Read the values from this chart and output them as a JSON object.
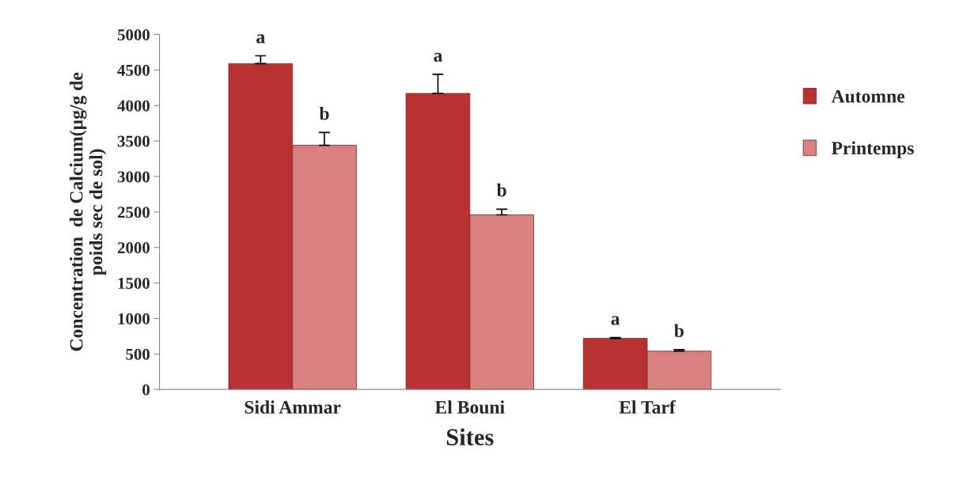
{
  "chart_data": {
    "type": "bar",
    "xlabel": "Sites",
    "ylabel": "Concentration  de Calcium(µg/g de\npoids sec de sol)",
    "categories": [
      "Sidi Ammar",
      "El Bouni",
      "El Tarf"
    ],
    "series": [
      {
        "name": "Automne",
        "color": "#b83232",
        "values": [
          4590,
          4170,
          720
        ],
        "errors": [
          110,
          270,
          10
        ]
      },
      {
        "name": "Printemps",
        "color": "#d98080",
        "values": [
          3440,
          2460,
          540
        ],
        "errors": [
          180,
          80,
          20
        ]
      }
    ],
    "annotations": [
      "a",
      "b",
      "a",
      "b",
      "a",
      "b"
    ],
    "ylim": [
      0,
      5000
    ],
    "yticks": [
      0,
      500,
      1000,
      1500,
      2000,
      2500,
      3000,
      3500,
      4000,
      4500,
      5000
    ],
    "grid": false,
    "legend": "right"
  }
}
